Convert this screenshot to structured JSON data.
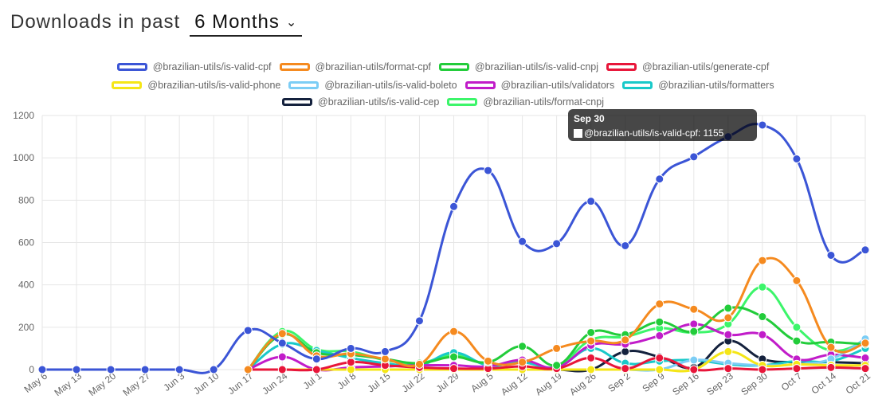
{
  "header": {
    "title": "Downloads in past",
    "period": "6 Months"
  },
  "tooltip": {
    "title": "Sep 30",
    "label": "@brazilian-utils/is-valid-cpf: 1155"
  },
  "chart_data": {
    "type": "line",
    "categories": [
      "May 6",
      "May 13",
      "May 20",
      "May 27",
      "Jun 3",
      "Jun 10",
      "Jun 17",
      "Jun 24",
      "Jul 1",
      "Jul 8",
      "Jul 15",
      "Jul 22",
      "Jul 29",
      "Aug 5",
      "Aug 12",
      "Aug 19",
      "Aug 26",
      "Sep 2",
      "Sep 9",
      "Sep 16",
      "Sep 23",
      "Sep 30",
      "Oct 7",
      "Oct 14",
      "Oct 21"
    ],
    "ylim": [
      0,
      1200
    ],
    "yticks": [
      0,
      200,
      400,
      600,
      800,
      1000,
      1200
    ],
    "grid": true,
    "legend_position": "top",
    "series": [
      {
        "name": "@brazilian-utils/is-valid-cpf",
        "color": "#3b55d6",
        "values": [
          0,
          0,
          0,
          0,
          0,
          0,
          185,
          125,
          50,
          100,
          85,
          230,
          770,
          940,
          605,
          595,
          795,
          585,
          900,
          1005,
          1100,
          1155,
          995,
          540,
          565
        ]
      },
      {
        "name": "@brazilian-utils/format-cpf",
        "color": "#f58a1f",
        "values": [
          null,
          null,
          null,
          null,
          null,
          null,
          0,
          170,
          65,
          75,
          50,
          25,
          180,
          40,
          35,
          100,
          135,
          140,
          310,
          285,
          245,
          515,
          420,
          105,
          125
        ]
      },
      {
        "name": "@brazilian-utils/is-valid-cnpj",
        "color": "#22cc3a",
        "values": [
          null,
          null,
          null,
          null,
          null,
          null,
          0,
          165,
          80,
          70,
          50,
          30,
          60,
          35,
          110,
          20,
          175,
          165,
          225,
          180,
          290,
          250,
          135,
          130,
          120
        ]
      },
      {
        "name": "@brazilian-utils/generate-cpf",
        "color": "#e8163a",
        "values": [
          null,
          null,
          null,
          null,
          null,
          null,
          0,
          0,
          0,
          35,
          20,
          10,
          5,
          5,
          15,
          5,
          55,
          5,
          55,
          0,
          5,
          0,
          5,
          10,
          5
        ]
      },
      {
        "name": "@brazilian-utils/is-valid-phone",
        "color": "#f5e616",
        "values": [
          null,
          null,
          null,
          null,
          null,
          null,
          0,
          0,
          0,
          0,
          0,
          0,
          0,
          0,
          0,
          0,
          0,
          0,
          0,
          0,
          85,
          20,
          25,
          20,
          20
        ]
      },
      {
        "name": "@brazilian-utils/is-valid-boleto",
        "color": "#7ccdf5",
        "values": [
          null,
          null,
          null,
          null,
          null,
          null,
          0,
          0,
          0,
          0,
          0,
          0,
          0,
          0,
          0,
          0,
          0,
          0,
          0,
          45,
          30,
          20,
          25,
          50,
          145
        ]
      },
      {
        "name": "@brazilian-utils/validators",
        "color": "#c11cc9",
        "values": [
          null,
          null,
          null,
          null,
          null,
          null,
          0,
          60,
          0,
          10,
          15,
          20,
          20,
          15,
          45,
          10,
          115,
          120,
          160,
          215,
          165,
          165,
          50,
          70,
          55
        ]
      },
      {
        "name": "@brazilian-utils/formatters",
        "color": "#19c9c9",
        "values": [
          null,
          null,
          null,
          null,
          null,
          null,
          0,
          120,
          90,
          55,
          30,
          20,
          80,
          20,
          35,
          10,
          100,
          30,
          40,
          45,
          25,
          20,
          40,
          40,
          100
        ]
      },
      {
        "name": "@brazilian-utils/is-valid-cep",
        "color": "#14213d",
        "values": [
          null,
          null,
          null,
          null,
          null,
          null,
          0,
          0,
          0,
          0,
          0,
          0,
          0,
          0,
          0,
          0,
          0,
          85,
          60,
          10,
          135,
          50,
          35,
          35,
          30
        ]
      },
      {
        "name": "@brazilian-utils/format-cnpj",
        "color": "#3cf56a",
        "values": [
          null,
          null,
          null,
          null,
          null,
          null,
          0,
          180,
          95,
          85,
          45,
          30,
          70,
          25,
          35,
          15,
          140,
          155,
          195,
          175,
          215,
          390,
          200,
          90,
          135
        ]
      }
    ]
  }
}
